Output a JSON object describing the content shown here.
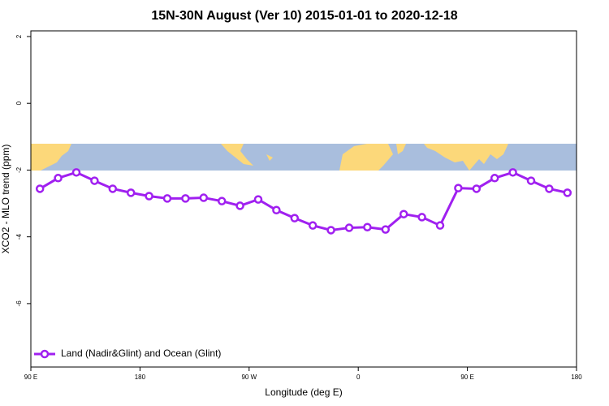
{
  "chart_data": {
    "type": "line",
    "title": "15N-30N August (Ver 10)   2015-01-01 to 2020-12-18",
    "xlabel": "Longitude (deg E)",
    "ylabel": "XCO2 - MLO trend (ppm)",
    "x": [
      97.5,
      112.5,
      127.5,
      142.5,
      157.5,
      172.5,
      187.5,
      202.5,
      217.5,
      232.5,
      247.5,
      262.5,
      277.5,
      292.5,
      307.5,
      322.5,
      337.5,
      352.5,
      367.5,
      382.5,
      397.5,
      412.5,
      427.5,
      442.5,
      457.5,
      472.5,
      487.5,
      502.5,
      517.5,
      532.5
    ],
    "series": [
      {
        "name": "Land (Nadir&Glint) and Ocean (Glint)",
        "color": "#a020f0",
        "values": [
          -2.56,
          -2.24,
          -2.07,
          -2.32,
          -2.56,
          -2.68,
          -2.78,
          -2.85,
          -2.85,
          -2.83,
          -2.93,
          -3.07,
          -2.88,
          -3.2,
          -3.44,
          -3.66,
          -3.8,
          -3.73,
          -3.71,
          -3.78,
          -3.32,
          -3.41,
          -3.66,
          -2.54,
          -2.56,
          -2.24,
          -2.07,
          -2.32,
          -2.56,
          -2.68
        ]
      }
    ],
    "xlim": [
      90,
      540
    ],
    "xticks": [
      {
        "value": 90,
        "label": "90 E"
      },
      180,
      {
        "value": 270,
        "label": "90 W"
      },
      {
        "value": 360,
        "label": "0"
      },
      {
        "value": 450,
        "label": "90 E"
      },
      {
        "value": 540,
        "label": "180"
      }
    ],
    "ylim": [
      -7.9,
      2.17
    ],
    "yticks": [
      -6,
      -4,
      -2,
      0,
      2
    ],
    "legend": "bottom-left"
  }
}
